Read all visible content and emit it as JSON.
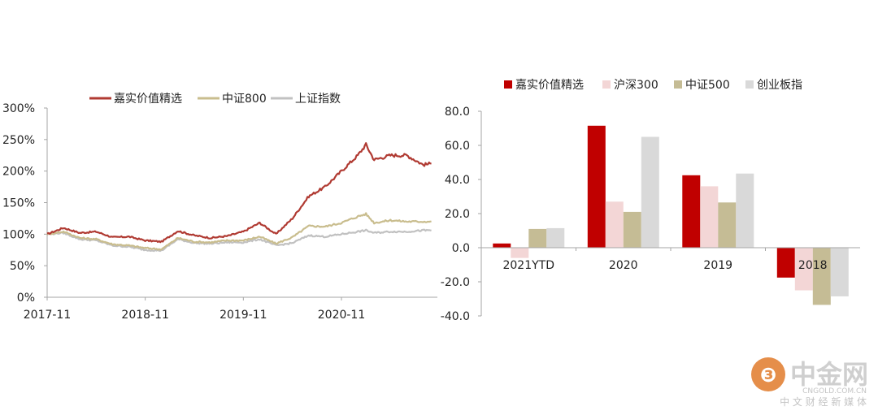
{
  "chart_data": [
    {
      "type": "line",
      "title": "",
      "xlabel": "",
      "ylabel": "",
      "ylim": [
        0,
        300
      ],
      "y_ticks": [
        "0%",
        "50%",
        "100%",
        "150%",
        "200%",
        "250%",
        "300%"
      ],
      "x_ticks": [
        "2017-11",
        "2018-11",
        "2019-11",
        "2020-11"
      ],
      "legend_position": "top",
      "grid": false,
      "series": [
        {
          "name": "嘉实价值精选",
          "color": "#b03a32",
          "x": [
            "2017-11",
            "2018-01",
            "2018-03",
            "2018-05",
            "2018-07",
            "2018-09",
            "2018-11",
            "2019-01",
            "2019-03",
            "2019-05",
            "2019-07",
            "2019-09",
            "2019-11",
            "2020-01",
            "2020-03",
            "2020-05",
            "2020-07",
            "2020-09",
            "2020-11",
            "2021-01",
            "2021-02",
            "2021-03",
            "2021-05",
            "2021-07",
            "2021-09",
            "2021-10"
          ],
          "values": [
            100,
            110,
            102,
            104,
            95,
            96,
            90,
            88,
            105,
            98,
            94,
            97,
            104,
            118,
            100,
            125,
            160,
            175,
            200,
            225,
            242,
            218,
            225,
            225,
            210,
            212
          ]
        },
        {
          "name": "中证800",
          "color": "#c9bd8e",
          "x": [
            "2017-11",
            "2018-01",
            "2018-03",
            "2018-05",
            "2018-07",
            "2018-09",
            "2018-11",
            "2019-01",
            "2019-03",
            "2019-05",
            "2019-07",
            "2019-09",
            "2019-11",
            "2020-01",
            "2020-03",
            "2020-05",
            "2020-07",
            "2020-09",
            "2020-11",
            "2021-01",
            "2021-02",
            "2021-03",
            "2021-05",
            "2021-07",
            "2021-09",
            "2021-10"
          ],
          "values": [
            100,
            104,
            94,
            92,
            84,
            82,
            78,
            76,
            94,
            88,
            87,
            90,
            90,
            96,
            85,
            95,
            113,
            112,
            118,
            128,
            132,
            118,
            122,
            120,
            120,
            120
          ]
        },
        {
          "name": "上证指数",
          "color": "#c1c1c1",
          "x": [
            "2017-11",
            "2018-01",
            "2018-03",
            "2018-05",
            "2018-07",
            "2018-09",
            "2018-11",
            "2019-01",
            "2019-03",
            "2019-05",
            "2019-07",
            "2019-09",
            "2019-11",
            "2020-01",
            "2020-03",
            "2020-05",
            "2020-07",
            "2020-09",
            "2020-11",
            "2021-01",
            "2021-02",
            "2021-03",
            "2021-05",
            "2021-07",
            "2021-09",
            "2021-10"
          ],
          "values": [
            100,
            102,
            92,
            90,
            82,
            80,
            75,
            74,
            92,
            86,
            85,
            87,
            87,
            92,
            82,
            86,
            98,
            96,
            100,
            104,
            106,
            102,
            104,
            104,
            106,
            106
          ]
        }
      ]
    },
    {
      "type": "bar",
      "title": "",
      "xlabel": "",
      "ylabel": "",
      "ylim": [
        -40,
        80
      ],
      "y_ticks": [
        "80.0",
        "60.0",
        "40.0",
        "20.0",
        "0.0",
        "-20.0",
        "-40.0"
      ],
      "categories": [
        "2021YTD",
        "2020",
        "2019",
        "2018"
      ],
      "legend_position": "top",
      "grid": false,
      "series": [
        {
          "name": "嘉实价值精选",
          "color": "#c00000",
          "values": [
            2.5,
            71.5,
            42.5,
            -17.5
          ]
        },
        {
          "name": "沪深300",
          "color": "#f3d6d6",
          "values": [
            -6.0,
            27.0,
            36.0,
            -25.0
          ]
        },
        {
          "name": "中证500",
          "color": "#c5bc95",
          "values": [
            11.0,
            21.0,
            26.5,
            -33.5
          ]
        },
        {
          "name": "创业板指",
          "color": "#d9d9d9",
          "values": [
            11.5,
            65.0,
            43.5,
            -28.5
          ]
        }
      ]
    }
  ],
  "watermark": {
    "brand_cn": "中金网",
    "domain": "CNGOLD.COM.CN",
    "slogan": "中 文 财 经 新 媒 体",
    "logo_color": "#e07a2a"
  }
}
